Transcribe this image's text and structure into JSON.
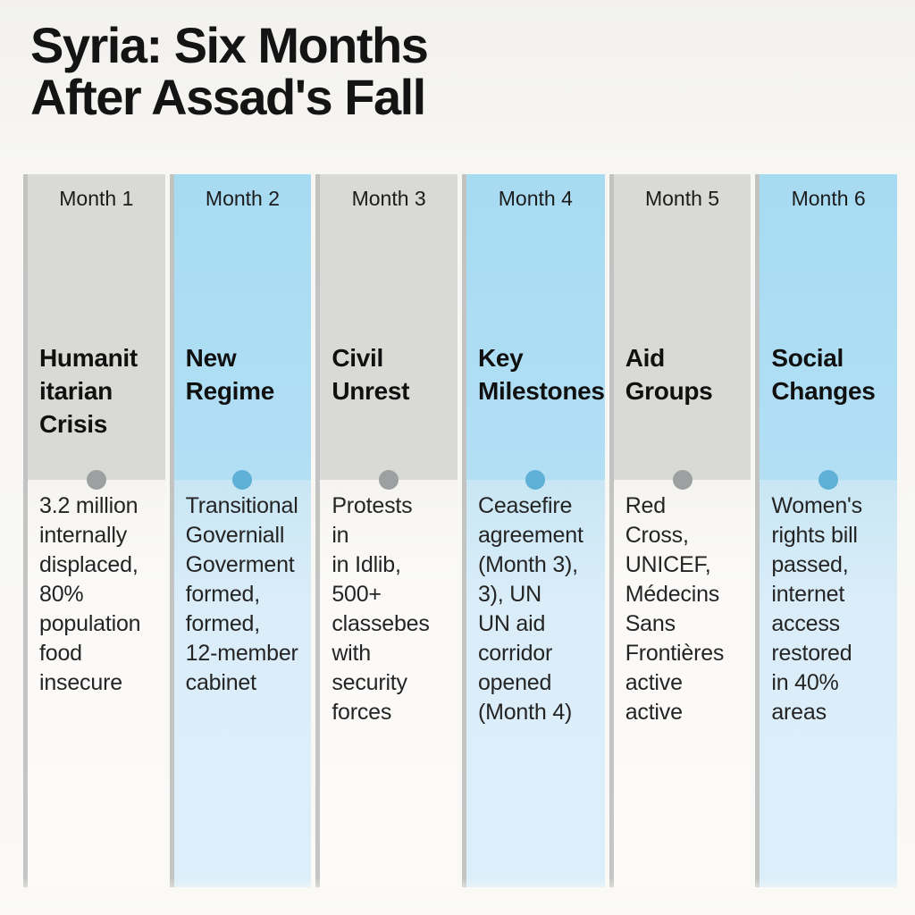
{
  "title": "Syria: Six Months\nAfter Assad's Fall",
  "colors": {
    "gray_header": "#d9dad6",
    "blue_header": "#a7dbf2",
    "gray_dot": "#9da0a1",
    "blue_dot": "#5fb0d6",
    "title_text": "#141414",
    "body_text": "#242424"
  },
  "columns": [
    {
      "month": "Month 1",
      "theme": "gray",
      "category": "Humanit\nitarian\nCrisis",
      "body": "3.2 million\ninternally\ndisplaced,\n80%\npopulation\nfood\ninsecure"
    },
    {
      "month": "Month 2",
      "theme": "blue",
      "category": "New\nRegime",
      "body": "Transitional\nGoverniall\nGoverment\nformed,\nformed,\n12-member\ncabinet"
    },
    {
      "month": "Month 3",
      "theme": "gray",
      "category": "Civil\nUnrest",
      "body": "Protests\nin\nin Idlib,\n500+\nclassebes\nwith\nsecurity\nforces"
    },
    {
      "month": "Month 4",
      "theme": "blue",
      "category": "Key\nMilestones",
      "body": "Ceasefire\nagreement\n(Month 3),\n3), UN\nUN aid\ncorridor\nopened\n(Month 4)"
    },
    {
      "month": "Month 5",
      "theme": "gray",
      "category": "Aid\nGroups",
      "body": "Red\nCross,\nUNICEF,\nMédecins\nSans\nFrontières\nactive\nactive"
    },
    {
      "month": "Month 6",
      "theme": "blue",
      "category": "Social\nChanges",
      "body": "Women's\nrights bill\npassed,\ninternet\naccess\nrestored\nin 40%\nareas"
    }
  ]
}
